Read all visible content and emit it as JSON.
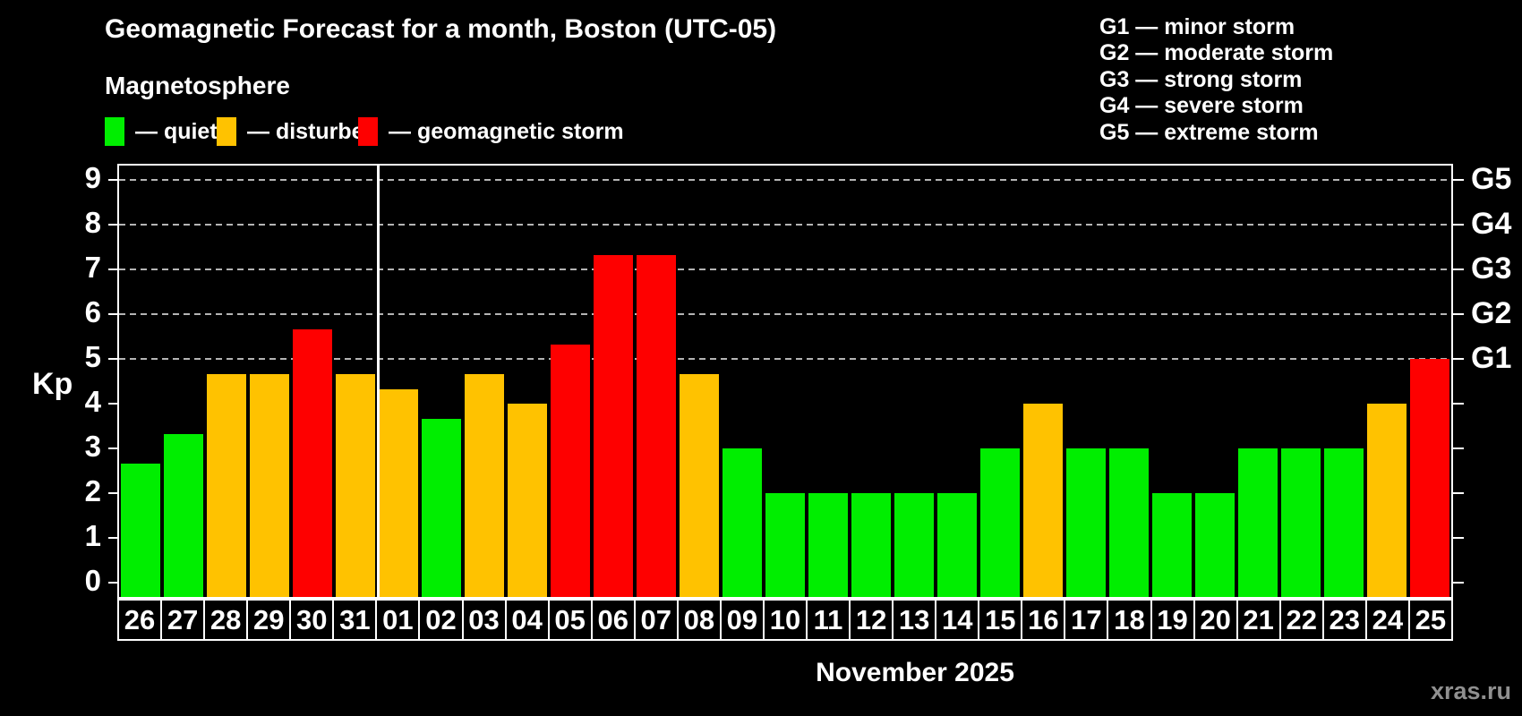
{
  "title": "Geomagnetic Forecast for a month, Boston (UTC-05)",
  "subtitle": "Magnetosphere",
  "watermark": "xras.ru",
  "colors": {
    "background": "#000000",
    "text": "#ffffff",
    "quiet": "#00ee00",
    "disturbed": "#ffc200",
    "storm": "#fe0000",
    "grid": "#b4b4b4",
    "axis": "#ffffff",
    "watermark": "#909090"
  },
  "legend": {
    "items": [
      {
        "status": "quiet",
        "label": "— quiet"
      },
      {
        "status": "disturbed",
        "label": "— disturbed"
      },
      {
        "status": "storm",
        "label": "— geomagnetic storm"
      }
    ]
  },
  "storm_scale_legend": {
    "lines": [
      "G1 — minor storm",
      "G2 — moderate storm",
      "G3 — strong storm",
      "G4 — severe storm",
      "G5 — extreme storm"
    ]
  },
  "chart_data": {
    "type": "bar",
    "title": "Geomagnetic Forecast for a month, Boston (UTC-05)",
    "subtitle": "Magnetosphere",
    "xlabel": "November 2025",
    "ylabel": "Kp",
    "ylim": [
      0,
      9
    ],
    "y_ticks": [
      0,
      1,
      2,
      3,
      4,
      5,
      6,
      7,
      8,
      9
    ],
    "gridlines_kp": [
      5,
      6,
      7,
      8,
      9
    ],
    "grid": "dashed horizontal at G-storm levels only",
    "right_axis": {
      "labels": [
        "G1",
        "G2",
        "G3",
        "G4",
        "G5"
      ],
      "kp_positions": [
        5,
        6,
        7,
        8,
        9
      ]
    },
    "month_separator_after_index": 5,
    "categories": [
      "26",
      "27",
      "28",
      "29",
      "30",
      "31",
      "01",
      "02",
      "03",
      "04",
      "05",
      "06",
      "07",
      "08",
      "09",
      "10",
      "11",
      "12",
      "13",
      "14",
      "15",
      "16",
      "17",
      "18",
      "19",
      "20",
      "21",
      "22",
      "23",
      "24",
      "25"
    ],
    "series": [
      {
        "name": "Kp forecast",
        "values": [
          2.67,
          3.33,
          4.67,
          4.67,
          5.67,
          4.67,
          4.33,
          3.67,
          4.67,
          4.0,
          5.33,
          7.33,
          7.33,
          4.67,
          3.0,
          2.0,
          2.0,
          2.0,
          2.0,
          2.0,
          3.0,
          4.0,
          3.0,
          3.0,
          2.0,
          2.0,
          3.0,
          3.0,
          3.0,
          4.0,
          5.0
        ]
      }
    ],
    "bar_status": [
      "quiet",
      "quiet",
      "disturbed",
      "disturbed",
      "storm",
      "disturbed",
      "disturbed",
      "quiet",
      "disturbed",
      "disturbed",
      "storm",
      "storm",
      "storm",
      "disturbed",
      "quiet",
      "quiet",
      "quiet",
      "quiet",
      "quiet",
      "quiet",
      "quiet",
      "disturbed",
      "quiet",
      "quiet",
      "quiet",
      "quiet",
      "quiet",
      "quiet",
      "quiet",
      "disturbed",
      "storm"
    ]
  }
}
